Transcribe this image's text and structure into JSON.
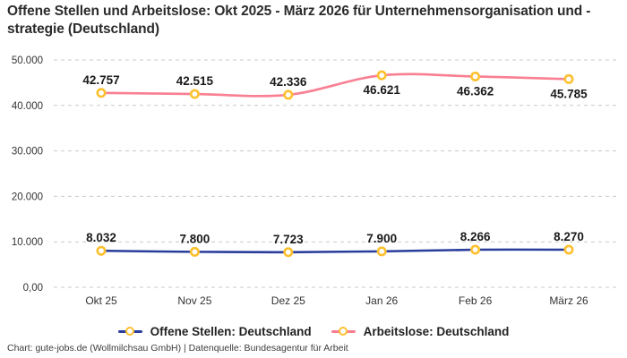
{
  "title": "Offene Stellen und Arbeitslose: Okt 2025 - März 2026 für Unternehmensorganisation und -strategie (Deutschland)",
  "footer": "Chart: gute-jobs.de (Wollmilchsau GmbH) | Datenquelle: Bundesagentur für Arbeit",
  "colors": {
    "background": "#ffffff",
    "grid": "#c9c9c9",
    "tick_text": "#333333",
    "data_label_text": "#1a1a1a",
    "title_text": "#2b2b2b"
  },
  "chart_data": {
    "type": "line",
    "categories": [
      "Okt 25",
      "Nov 25",
      "Dez 25",
      "Jan 26",
      "Feb 26",
      "März 26"
    ],
    "series": [
      {
        "name": "Offene Stellen: Deutschland",
        "color": "#293d9c",
        "values": [
          8032,
          7800,
          7723,
          7900,
          8266,
          8270
        ],
        "labels": [
          "8.032",
          "7.800",
          "7.723",
          "7.900",
          "8.266",
          "8.270"
        ],
        "label_side": [
          "above",
          "above",
          "above",
          "above",
          "above",
          "above"
        ]
      },
      {
        "name": "Arbeitslose: Deutschland",
        "color": "#f97f92",
        "values": [
          42757,
          42515,
          42336,
          46621,
          46362,
          45785
        ],
        "labels": [
          "42.757",
          "42.515",
          "42.336",
          "46.621",
          "46.362",
          "45.785"
        ],
        "label_side": [
          "above",
          "above",
          "above",
          "below",
          "below",
          "below"
        ]
      }
    ],
    "y_ticks": [
      {
        "value": 0,
        "label": "0,00"
      },
      {
        "value": 10000,
        "label": "10.000"
      },
      {
        "value": 20000,
        "label": "20.000"
      },
      {
        "value": 30000,
        "label": "30.000"
      },
      {
        "value": 40000,
        "label": "40.000"
      },
      {
        "value": 50000,
        "label": "50.000"
      }
    ],
    "ylim": [
      0,
      50000
    ],
    "xlabel": "",
    "ylabel": "",
    "grid": true,
    "legend_position": "bottom",
    "marker": {
      "stroke": "#fdc02f",
      "fill": "#ffffff"
    }
  }
}
